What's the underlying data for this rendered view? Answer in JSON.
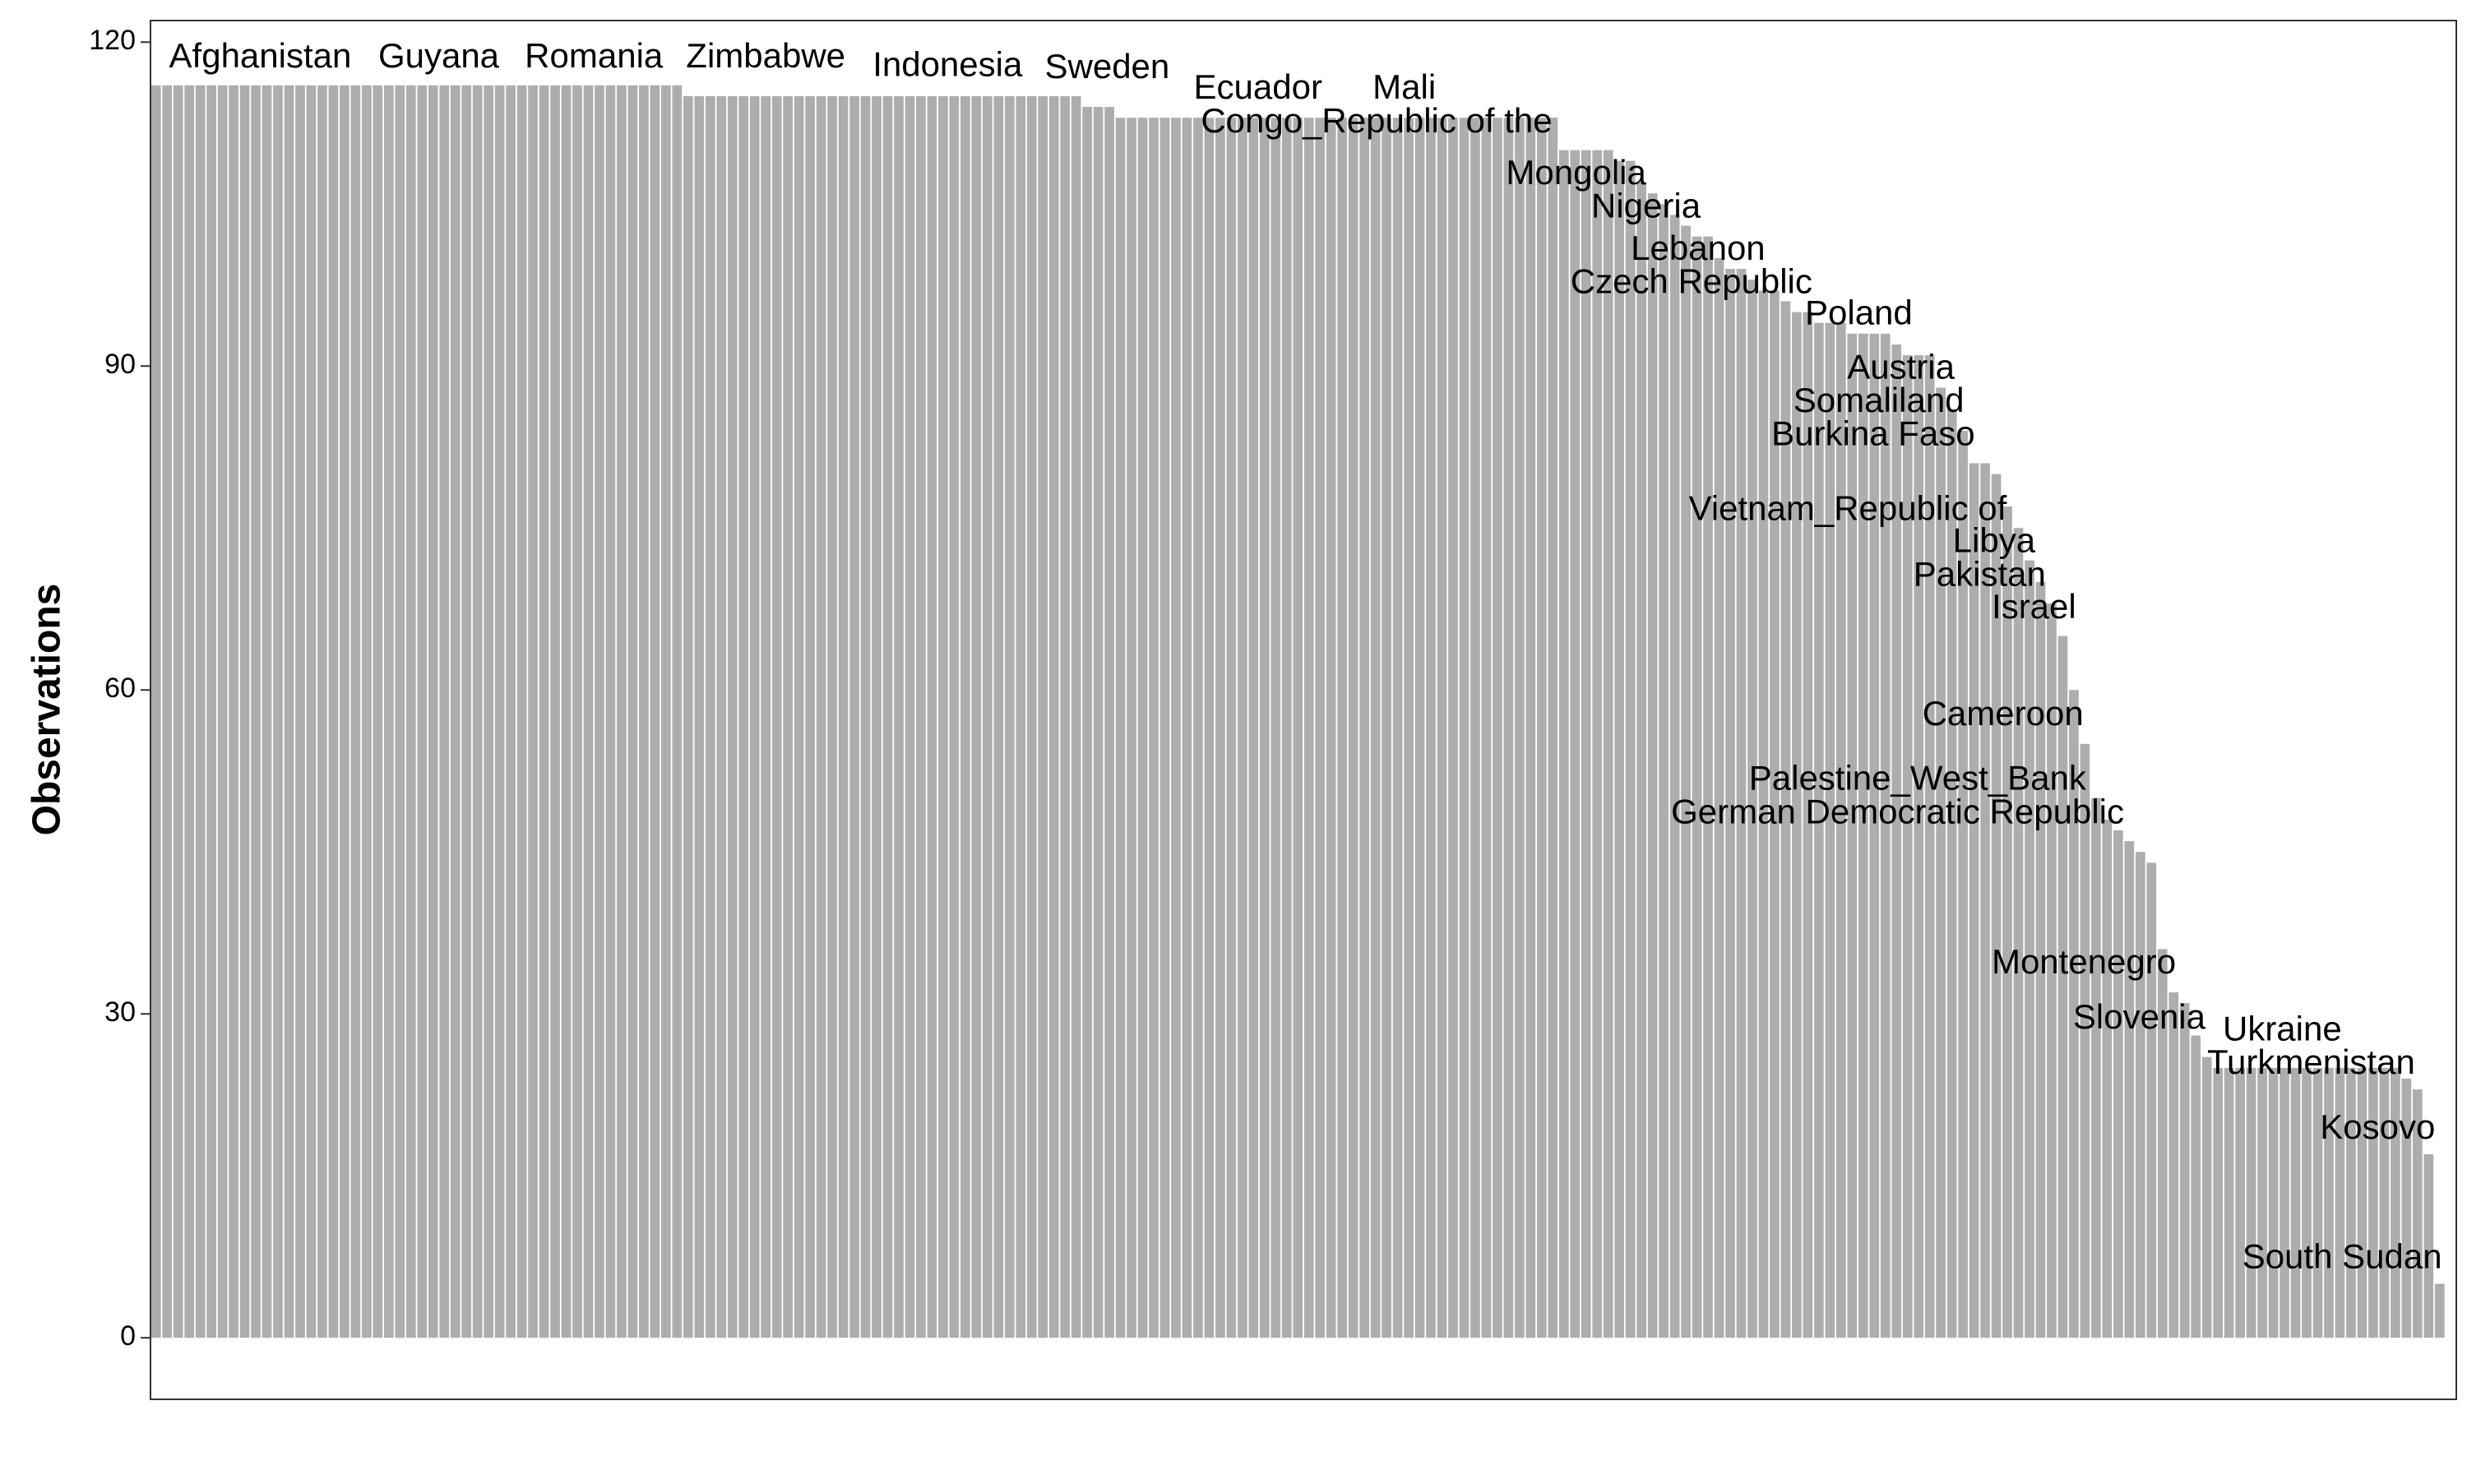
{
  "chart_data": {
    "type": "bar",
    "ylabel": "Observations",
    "color": "#adadad",
    "values": [
      116,
      116,
      116,
      116,
      116,
      116,
      116,
      116,
      116,
      116,
      116,
      116,
      116,
      116,
      116,
      116,
      116,
      116,
      116,
      116,
      116,
      116,
      116,
      116,
      116,
      116,
      116,
      116,
      116,
      116,
      116,
      116,
      116,
      116,
      116,
      116,
      116,
      116,
      116,
      116,
      116,
      116,
      116,
      116,
      116,
      116,
      116,
      116,
      115,
      115,
      115,
      115,
      115,
      115,
      115,
      115,
      115,
      115,
      115,
      115,
      115,
      115,
      115,
      115,
      115,
      115,
      115,
      115,
      115,
      115,
      115,
      115,
      115,
      115,
      115,
      115,
      115,
      115,
      115,
      115,
      115,
      115,
      115,
      115,
      114,
      114,
      114,
      113,
      113,
      113,
      113,
      113,
      113,
      113,
      113,
      113,
      113,
      113,
      113,
      113,
      113,
      113,
      113,
      113,
      113,
      113,
      113,
      113,
      113,
      113,
      113,
      113,
      113,
      113,
      113,
      113,
      113,
      113,
      113,
      113,
      113,
      113,
      113,
      113,
      113,
      113,
      113,
      110,
      110,
      110,
      110,
      110,
      109,
      109,
      107,
      106,
      105,
      104,
      103,
      102,
      102,
      100,
      99,
      99,
      98,
      97,
      97,
      96,
      95,
      95,
      94,
      94,
      94,
      93,
      93,
      93,
      93,
      92,
      91,
      91,
      91,
      88,
      86,
      84,
      81,
      81,
      80,
      77,
      75,
      72,
      70,
      68,
      65,
      60,
      55,
      50,
      48,
      47,
      46,
      45,
      44,
      36,
      32,
      31,
      28,
      26,
      25,
      25,
      25,
      25,
      25,
      25,
      25,
      25,
      25,
      25,
      25,
      25,
      25,
      25,
      25,
      25,
      25,
      24,
      23,
      17,
      5
    ],
    "xlim": [
      -0.5,
      207.5
    ],
    "ylim": [
      -5.7,
      122
    ],
    "yticks": [
      0,
      30,
      60,
      90,
      120
    ],
    "annotations": [
      {
        "text": "Afghanistan",
        "x": 9.4,
        "y": 118.5
      },
      {
        "text": "Guyana",
        "x": 25.5,
        "y": 118.5
      },
      {
        "text": "Romania",
        "x": 39.5,
        "y": 118.5
      },
      {
        "text": "Zimbabwe",
        "x": 55,
        "y": 118.5
      },
      {
        "text": "Indonesia",
        "x": 71.4,
        "y": 117.7
      },
      {
        "text": "Sweden",
        "x": 85.8,
        "y": 117.5
      },
      {
        "text": "Ecuador",
        "x": 99.4,
        "y": 115.6
      },
      {
        "text": "Mali",
        "x": 112.6,
        "y": 115.6
      },
      {
        "text": "Congo_Republic of the",
        "x": 110.1,
        "y": 112.5
      },
      {
        "text": "Mongolia",
        "x": 128.1,
        "y": 107.7
      },
      {
        "text": "Nigeria",
        "x": 134.4,
        "y": 104.6
      },
      {
        "text": "Lebanon",
        "x": 139.1,
        "y": 100.7
      },
      {
        "text": "Czech Republic",
        "x": 138.5,
        "y": 97.6
      },
      {
        "text": "Poland",
        "x": 153.6,
        "y": 94.7
      },
      {
        "text": "Austria",
        "x": 157.4,
        "y": 89.7
      },
      {
        "text": "Somaliland",
        "x": 155.4,
        "y": 86.6
      },
      {
        "text": "Burkina Faso",
        "x": 154.9,
        "y": 83.5
      },
      {
        "text": "Vietnam_Republic of",
        "x": 152.6,
        "y": 76.6
      },
      {
        "text": "Libya",
        "x": 165.8,
        "y": 73.6
      },
      {
        "text": "Pakistan",
        "x": 164.5,
        "y": 70.5
      },
      {
        "text": "Israel",
        "x": 169.4,
        "y": 67.5
      },
      {
        "text": "Cameroon",
        "x": 166.6,
        "y": 57.6
      },
      {
        "text": "Palestine_West_Bank",
        "x": 158.9,
        "y": 51.6
      },
      {
        "text": "German Democratic Republic",
        "x": 157.1,
        "y": 48.5
      },
      {
        "text": "Montenegro",
        "x": 173.9,
        "y": 34.6
      },
      {
        "text": "Slovenia",
        "x": 178.9,
        "y": 29.5
      },
      {
        "text": "Ukraine",
        "x": 191.8,
        "y": 28.4
      },
      {
        "text": "Turkmenistan",
        "x": 194.4,
        "y": 25.3
      },
      {
        "text": "Kosovo",
        "x": 200.4,
        "y": 19.3
      },
      {
        "text": "South Sudan",
        "x": 197.2,
        "y": 7.3
      }
    ]
  }
}
